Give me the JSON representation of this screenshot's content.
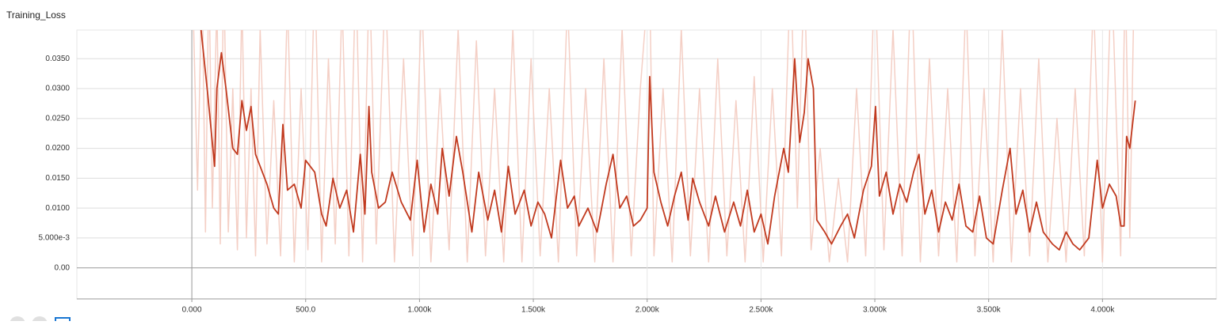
{
  "chart_data": {
    "type": "line",
    "title": "Training_Loss",
    "xlim": [
      -505,
      4500
    ],
    "ylim": [
      -0.0052,
      0.0398
    ],
    "grid": true,
    "xticks": [
      {
        "value": 0,
        "label": "0.000"
      },
      {
        "value": 500,
        "label": "500.0"
      },
      {
        "value": 1000,
        "label": "1.000k"
      },
      {
        "value": 1500,
        "label": "1.500k"
      },
      {
        "value": 2000,
        "label": "2.000k"
      },
      {
        "value": 2500,
        "label": "2.500k"
      },
      {
        "value": 3000,
        "label": "3.000k"
      },
      {
        "value": 3500,
        "label": "3.500k"
      },
      {
        "value": 4000,
        "label": "4.000k"
      }
    ],
    "yticks": [
      {
        "value": 0,
        "label": "0.00"
      },
      {
        "value": 0.005,
        "label": "5.000e-3"
      },
      {
        "value": 0.01,
        "label": "0.0100"
      },
      {
        "value": 0.015,
        "label": "0.0150"
      },
      {
        "value": 0.02,
        "label": "0.0200"
      },
      {
        "value": 0.025,
        "label": "0.0250"
      },
      {
        "value": 0.03,
        "label": "0.0300"
      },
      {
        "value": 0.035,
        "label": "0.0350"
      }
    ],
    "series": [
      {
        "color": "#f4cfc5",
        "x": [
          5,
          25,
          45,
          60,
          75,
          90,
          110,
          125,
          140,
          160,
          180,
          200,
          220,
          240,
          260,
          280,
          300,
          330,
          360,
          390,
          420,
          450,
          480,
          510,
          540,
          570,
          600,
          630,
          660,
          690,
          720,
          750,
          780,
          810,
          850,
          890,
          930,
          970,
          1010,
          1050,
          1090,
          1130,
          1170,
          1210,
          1250,
          1290,
          1330,
          1370,
          1410,
          1450,
          1490,
          1530,
          1570,
          1610,
          1650,
          1690,
          1730,
          1770,
          1810,
          1850,
          1890,
          1930,
          1970,
          2010,
          2030,
          2070,
          2110,
          2150,
          2190,
          2230,
          2270,
          2310,
          2350,
          2390,
          2430,
          2470,
          2510,
          2550,
          2590,
          2630,
          2660,
          2690,
          2720,
          2760,
          2800,
          2840,
          2880,
          2920,
          2960,
          3000,
          3040,
          3080,
          3120,
          3160,
          3200,
          3240,
          3280,
          3320,
          3360,
          3400,
          3440,
          3480,
          3520,
          3560,
          3600,
          3640,
          3680,
          3720,
          3760,
          3800,
          3840,
          3880,
          3920,
          3960,
          4000,
          4040,
          4080,
          4100,
          4120,
          4140
        ],
        "values": [
          0.045,
          0.013,
          0.05,
          0.006,
          0.05,
          0.01,
          0.045,
          0.004,
          0.05,
          0.006,
          0.03,
          0.003,
          0.045,
          0.005,
          0.03,
          0.002,
          0.04,
          0.004,
          0.028,
          0.002,
          0.045,
          0.001,
          0.03,
          0.003,
          0.05,
          0.001,
          0.035,
          0.004,
          0.045,
          0.002,
          0.05,
          0.001,
          0.05,
          0.004,
          0.048,
          0.001,
          0.035,
          0.002,
          0.045,
          0.001,
          0.03,
          0.003,
          0.04,
          0.001,
          0.038,
          0.002,
          0.03,
          0.001,
          0.04,
          0.001,
          0.035,
          0.002,
          0.03,
          0.001,
          0.045,
          0.002,
          0.03,
          0.001,
          0.035,
          0.001,
          0.04,
          0.002,
          0.03,
          0.05,
          0.002,
          0.03,
          0.001,
          0.04,
          0.002,
          0.03,
          0.001,
          0.035,
          0.002,
          0.028,
          0.001,
          0.032,
          0.001,
          0.03,
          0.002,
          0.05,
          0.01,
          0.05,
          0.003,
          0.02,
          0.001,
          0.015,
          0.001,
          0.03,
          0.002,
          0.05,
          0.003,
          0.04,
          0.002,
          0.05,
          0.001,
          0.035,
          0.002,
          0.03,
          0.001,
          0.045,
          0.002,
          0.03,
          0.001,
          0.04,
          0.001,
          0.03,
          0.002,
          0.035,
          0.001,
          0.025,
          0.001,
          0.03,
          0.002,
          0.045,
          0.001,
          0.05,
          0.002,
          0.05,
          0.005,
          0.05
        ]
      },
      {
        "color": "#c13a1f",
        "x": [
          40,
          70,
          100,
          110,
          130,
          150,
          180,
          200,
          220,
          240,
          260,
          280,
          300,
          330,
          360,
          380,
          400,
          420,
          450,
          480,
          500,
          540,
          570,
          590,
          620,
          650,
          680,
          710,
          740,
          760,
          778,
          790,
          820,
          850,
          880,
          920,
          960,
          990,
          1020,
          1050,
          1080,
          1100,
          1130,
          1162,
          1190,
          1230,
          1260,
          1300,
          1330,
          1360,
          1390,
          1420,
          1460,
          1490,
          1520,
          1550,
          1580,
          1620,
          1650,
          1680,
          1700,
          1740,
          1780,
          1820,
          1850,
          1880,
          1910,
          1940,
          1970,
          2000,
          2011,
          2030,
          2060,
          2090,
          2120,
          2150,
          2180,
          2200,
          2230,
          2270,
          2300,
          2340,
          2380,
          2410,
          2440,
          2470,
          2500,
          2530,
          2560,
          2600,
          2620,
          2648,
          2670,
          2690,
          2707,
          2730,
          2745,
          2780,
          2810,
          2850,
          2880,
          2910,
          2950,
          2985,
          3003,
          3020,
          3050,
          3080,
          3110,
          3140,
          3170,
          3194,
          3220,
          3250,
          3280,
          3310,
          3340,
          3370,
          3400,
          3430,
          3460,
          3490,
          3520,
          3560,
          3594,
          3620,
          3650,
          3680,
          3710,
          3740,
          3780,
          3810,
          3840,
          3870,
          3900,
          3940,
          3977,
          4000,
          4030,
          4060,
          4081,
          4095,
          4106,
          4120,
          4144
        ],
        "values": [
          0.04,
          0.029,
          0.017,
          0.03,
          0.036,
          0.03,
          0.02,
          0.019,
          0.028,
          0.023,
          0.027,
          0.019,
          0.017,
          0.014,
          0.01,
          0.009,
          0.024,
          0.013,
          0.014,
          0.01,
          0.018,
          0.016,
          0.009,
          0.007,
          0.015,
          0.01,
          0.013,
          0.006,
          0.019,
          0.009,
          0.027,
          0.016,
          0.01,
          0.011,
          0.016,
          0.011,
          0.008,
          0.018,
          0.006,
          0.014,
          0.009,
          0.02,
          0.012,
          0.022,
          0.016,
          0.006,
          0.016,
          0.008,
          0.013,
          0.006,
          0.017,
          0.009,
          0.013,
          0.007,
          0.011,
          0.009,
          0.005,
          0.018,
          0.01,
          0.012,
          0.007,
          0.01,
          0.006,
          0.014,
          0.019,
          0.01,
          0.012,
          0.007,
          0.008,
          0.01,
          0.032,
          0.016,
          0.011,
          0.007,
          0.012,
          0.016,
          0.008,
          0.015,
          0.011,
          0.007,
          0.012,
          0.006,
          0.011,
          0.007,
          0.013,
          0.006,
          0.009,
          0.004,
          0.012,
          0.02,
          0.016,
          0.035,
          0.021,
          0.026,
          0.035,
          0.03,
          0.008,
          0.006,
          0.004,
          0.007,
          0.009,
          0.005,
          0.013,
          0.017,
          0.027,
          0.012,
          0.016,
          0.009,
          0.014,
          0.011,
          0.016,
          0.019,
          0.009,
          0.013,
          0.006,
          0.011,
          0.008,
          0.014,
          0.007,
          0.006,
          0.012,
          0.005,
          0.004,
          0.013,
          0.02,
          0.009,
          0.013,
          0.006,
          0.011,
          0.006,
          0.004,
          0.003,
          0.006,
          0.004,
          0.003,
          0.005,
          0.018,
          0.01,
          0.014,
          0.012,
          0.007,
          0.007,
          0.022,
          0.02,
          0.028
        ]
      }
    ]
  }
}
